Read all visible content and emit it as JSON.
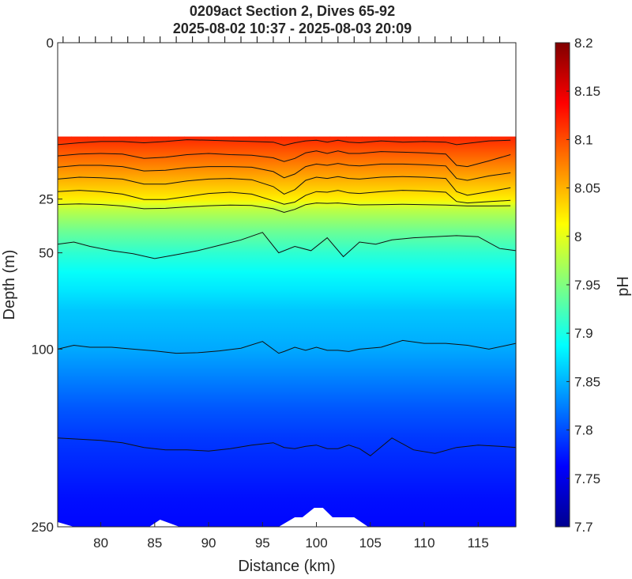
{
  "chart_data": {
    "type": "heatmap",
    "title_line1": "0209act Section 2, Dives 65-92",
    "title_line2": "2025-08-02 10:37 - 2025-08-03 20:09",
    "xlabel": "Distance (km)",
    "ylabel": "Depth (m)",
    "colorbar_label": "pH",
    "xlim": [
      76.0,
      118.5
    ],
    "x_ticks": [
      80,
      85,
      90,
      95,
      100,
      105,
      110,
      115
    ],
    "y_axis_scale": "nonlinear (stretched near surface)",
    "y_ticks": [
      0,
      25,
      50,
      100,
      250
    ],
    "y_tick_pos": [
      0.0,
      0.323,
      0.434,
      0.633,
      1.0
    ],
    "data_top_depth": 15,
    "clim": [
      7.7,
      8.2
    ],
    "colorbar_ticks": [
      "8.2",
      "8.15",
      "8.1",
      "8.05",
      "8",
      "7.95",
      "7.9",
      "7.85",
      "7.8",
      "7.75",
      "7.7"
    ],
    "colorbar_tick_values": [
      8.2,
      8.15,
      8.1,
      8.05,
      8.0,
      7.95,
      7.9,
      7.85,
      7.8,
      7.75,
      7.7
    ],
    "colormap": [
      "#00008f",
      "#0000ff",
      "#0080ff",
      "#00ffff",
      "#80ff80",
      "#ffff00",
      "#ff8000",
      "#ff0000",
      "#800000"
    ],
    "dive_distances_km": [
      76.5,
      78,
      79.5,
      81,
      82.5,
      84,
      85.5,
      87,
      88.5,
      90,
      91.5,
      93,
      94.5,
      96,
      97.5,
      99,
      100.5,
      102,
      103.5,
      105,
      106.5,
      108,
      109.5,
      111,
      112.5,
      114,
      115.5,
      117
    ],
    "profile_depths_m": [
      15,
      17,
      19,
      21,
      23,
      25,
      27,
      30,
      35,
      40,
      50,
      60,
      70,
      80,
      100,
      125,
      150,
      175,
      200,
      225,
      250
    ],
    "profile_ph": [
      8.12,
      8.1,
      8.08,
      8.06,
      8.04,
      8.02,
      8.0,
      7.98,
      7.96,
      7.94,
      7.91,
      7.89,
      7.875,
      7.86,
      7.845,
      7.825,
      7.805,
      7.79,
      7.78,
      7.77,
      7.765
    ],
    "contour_lines": [
      {
        "x": [
          76,
          78,
          80,
          82,
          84,
          86,
          88,
          90,
          92,
          94,
          96,
          97,
          98,
          99,
          100,
          101,
          102,
          103,
          104,
          106,
          108,
          110,
          112,
          113,
          114,
          116,
          118
        ],
        "depth": [
          16.3,
          16,
          15.8,
          15.8,
          16,
          15.8,
          15.5,
          15.6,
          15.7,
          15.8,
          15.9,
          16.4,
          16,
          15.7,
          15.6,
          15.9,
          15.6,
          15.9,
          16,
          15.7,
          15.9,
          15.8,
          15.9,
          16.3,
          16.1,
          15.7,
          15.6
        ]
      },
      {
        "x": [
          76,
          78,
          80,
          82,
          84,
          86,
          88,
          90,
          92,
          94,
          96,
          97,
          98,
          99,
          100,
          101,
          102,
          103,
          104,
          106,
          108,
          110,
          112,
          113,
          114,
          116,
          118
        ],
        "depth": [
          18.1,
          17.8,
          17.7,
          17.8,
          18.5,
          18.3,
          17.9,
          17.7,
          17.9,
          18,
          18.4,
          19,
          18.5,
          17.6,
          17.3,
          17.7,
          17.3,
          17.7,
          17.7,
          17.4,
          17.5,
          17.6,
          17.8,
          19.6,
          19.8,
          18.9,
          17.9
        ]
      },
      {
        "x": [
          76,
          78,
          80,
          82,
          84,
          86,
          88,
          90,
          92,
          94,
          96,
          97,
          98,
          99,
          100,
          101,
          102,
          103,
          104,
          106,
          108,
          110,
          112,
          113,
          114,
          116,
          118
        ],
        "depth": [
          19.9,
          19.6,
          19.6,
          19.8,
          20.5,
          20.4,
          20,
          19.8,
          19.8,
          19.9,
          20.6,
          21.6,
          21,
          19.8,
          19.4,
          19.6,
          19.3,
          19.6,
          19.7,
          19.4,
          19.4,
          19.5,
          19.7,
          21.7,
          22,
          21.3,
          20.8
        ]
      },
      {
        "x": [
          76,
          78,
          80,
          82,
          84,
          86,
          88,
          90,
          92,
          94,
          96,
          97,
          98,
          99,
          100,
          101,
          102,
          103,
          104,
          106,
          108,
          110,
          112,
          113,
          114,
          116,
          118
        ],
        "depth": [
          21.8,
          21.5,
          21.6,
          21.8,
          22.6,
          22.6,
          22.1,
          21.8,
          21.7,
          21.9,
          23,
          24.2,
          23.5,
          22,
          21.5,
          21.7,
          21.4,
          21.7,
          21.8,
          21.5,
          21.4,
          21.5,
          21.7,
          23.8,
          24.4,
          23.8,
          23.2
        ]
      },
      {
        "x": [
          76,
          78,
          80,
          82,
          84,
          86,
          88,
          90,
          92,
          94,
          96,
          97,
          98,
          99,
          100,
          101,
          102,
          103,
          104,
          106,
          108,
          110,
          112,
          113,
          114,
          116,
          118
        ],
        "depth": [
          23.8,
          23.6,
          23.8,
          24.2,
          25.2,
          25.2,
          24.6,
          24.1,
          23.9,
          24.2,
          25.8,
          27.4,
          26.4,
          24.4,
          23.8,
          23.9,
          23.6,
          24,
          24.1,
          23.8,
          23.6,
          23.7,
          23.9,
          26.1,
          26.8,
          26.2,
          25.6
        ]
      },
      {
        "x": [
          76,
          78,
          80,
          82,
          84,
          86,
          88,
          90,
          92,
          94,
          96,
          97,
          98,
          99,
          100,
          101,
          102,
          103,
          104,
          106,
          108,
          110,
          112,
          114,
          116,
          118
        ],
        "depth": [
          27.5,
          27.2,
          27.5,
          28.2,
          29.5,
          29.3,
          28.6,
          28.1,
          27.8,
          28,
          29.5,
          31.2,
          29.8,
          27.6,
          26.8,
          27,
          26.8,
          27.3,
          27.7,
          27.6,
          27.4,
          27.6,
          27.8,
          28.2,
          28.2,
          28.1
        ]
      },
      {
        "x": [
          76,
          77.5,
          79,
          81,
          83,
          85,
          87,
          89,
          91,
          93,
          95,
          96.5,
          98,
          99.5,
          101,
          102.5,
          104,
          105.5,
          107,
          109,
          111,
          113,
          115,
          117,
          118.5
        ],
        "depth": [
          46,
          45,
          47,
          49,
          50.5,
          53,
          51,
          49,
          46.5,
          44,
          40.5,
          50,
          47,
          49,
          43,
          52,
          45,
          46,
          44,
          43,
          42.5,
          42,
          42.5,
          48,
          49
        ]
      },
      {
        "x": [
          76,
          77.5,
          79,
          81,
          83,
          85,
          87,
          89,
          91,
          93,
          95,
          96.5,
          97,
          98,
          99,
          100,
          101,
          102,
          103,
          104,
          106,
          108,
          110,
          112,
          114,
          116,
          118.5
        ],
        "depth": [
          100,
          98,
          99,
          99,
          100,
          101.5,
          103.5,
          103,
          101.5,
          99.5,
          96,
          103.5,
          102,
          99,
          101,
          99,
          101,
          101,
          102,
          100,
          99,
          95.5,
          97,
          97,
          98,
          100,
          97
        ]
      },
      {
        "x": [
          76,
          78,
          80,
          82,
          84,
          86,
          88,
          90,
          92,
          94,
          96,
          97,
          98,
          99,
          100,
          101,
          102,
          103,
          104,
          105,
          107,
          109,
          111,
          113,
          115,
          117,
          118.5
        ],
        "depth": [
          175,
          176,
          177,
          179,
          183,
          185,
          185,
          186,
          184,
          181,
          179,
          183,
          184,
          182,
          181,
          184,
          184,
          181,
          184,
          190,
          175,
          185,
          188,
          183,
          181,
          182,
          183
        ]
      }
    ]
  }
}
